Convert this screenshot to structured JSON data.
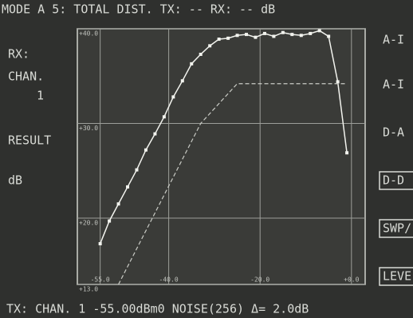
{
  "screen": {
    "header": "MODE A 5: TOTAL DIST.   TX:  --   RX:  -- dB",
    "left_labels": [
      "RX:",
      "CHAN.",
      "1",
      "RESULT",
      "dB"
    ],
    "softkeys": [
      "A-I",
      "A-I",
      "D-A",
      "D-D",
      "SWP/",
      "LEVE"
    ],
    "footer": "TX: CHAN. 1  -55.00dBm0  NOISE(256)   Δ= 2.0dB"
  },
  "chart_data": {
    "type": "line",
    "xlim": [
      -60,
      3
    ],
    "ylim": [
      13,
      40
    ],
    "xticks": [
      {
        "value": -55,
        "label": "-55.0"
      },
      {
        "value": -40,
        "label": "-40.0"
      },
      {
        "value": -20,
        "label": "-20.0"
      },
      {
        "value": 0,
        "label": "+0.0"
      }
    ],
    "yticks": [
      {
        "value": 13,
        "label": "+13.0"
      },
      {
        "value": 20,
        "label": "+20.0"
      },
      {
        "value": 30,
        "label": "+30.0"
      },
      {
        "value": 40,
        "label": "+40.0"
      }
    ],
    "grid": true,
    "series": [
      {
        "color": "#f2f3ee",
        "dash": false,
        "markers": true,
        "x": [
          -55,
          -53,
          -51,
          -49,
          -47,
          -45,
          -43,
          -41,
          -39,
          -37,
          -35,
          -33,
          -31,
          -29,
          -27,
          -25,
          -23,
          -21,
          -19,
          -17,
          -15,
          -13,
          -11,
          -9,
          -7,
          -5,
          -3,
          -1
        ],
        "values": [
          17.3,
          19.7,
          21.5,
          23.3,
          25.1,
          27.2,
          28.9,
          30.7,
          32.8,
          34.5,
          36.3,
          37.3,
          38.2,
          38.9,
          39.0,
          39.3,
          39.4,
          39.1,
          39.5,
          39.2,
          39.6,
          39.4,
          39.3,
          39.5,
          39.8,
          39.2,
          34.4,
          26.9
        ]
      },
      {
        "color": "#c9cbc5",
        "dash": true,
        "markers": false,
        "x": [
          -51,
          -33,
          -25,
          -1
        ],
        "values": [
          13,
          30,
          34.2,
          34.2
        ]
      }
    ]
  }
}
